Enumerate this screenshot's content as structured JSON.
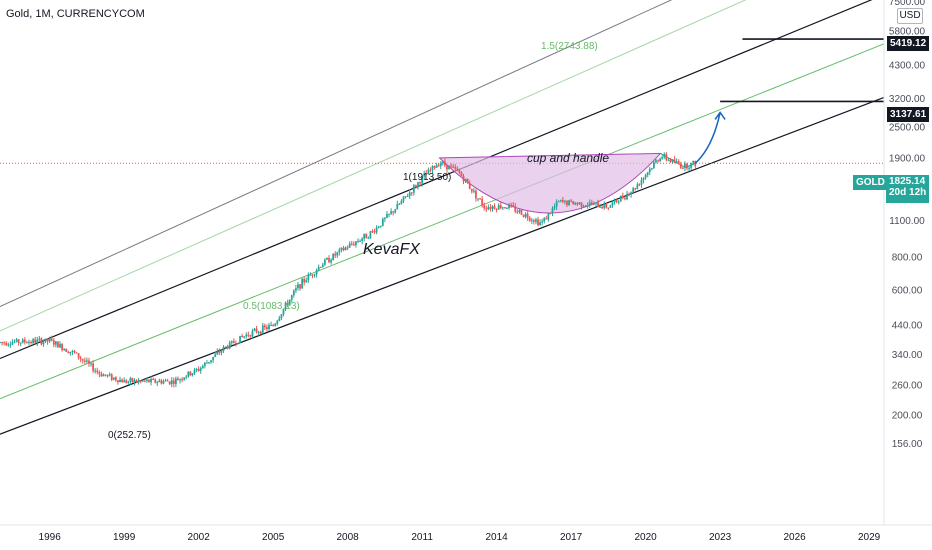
{
  "header": {
    "title": "Gold, 1M, CURRENCYCOM"
  },
  "currency": "USD",
  "price_tags": {
    "symbol": "GOLD",
    "price": "1825.14",
    "countdown": "20d 12h",
    "target_upper": "5419.12",
    "target_lower": "3137.61"
  },
  "annotations": {
    "pattern": "cup and handle",
    "author": "KevaFX",
    "fib_0": "0(252.75)",
    "fib_05": "0.5(1083.13)",
    "fib_1": "1(1913.50)",
    "fib_15": "1.5(2743.88)"
  },
  "colors": {
    "up": "#26a69a",
    "down": "#ef5350",
    "channel": "#131722",
    "fib_green": "#66bb6a",
    "fib_light": "#a5d6a7",
    "cup_fill": "#e1bee7",
    "projection": "#1565c0",
    "price_line": "#ef5350"
  },
  "chart_data": {
    "type": "candlestick",
    "x_axis": {
      "ticks": [
        "1996",
        "1999",
        "2002",
        "2005",
        "2008",
        "2011",
        "2014",
        "2017",
        "2020",
        "2023",
        "2026",
        "2029"
      ]
    },
    "y_axis": {
      "scale": "log",
      "ticks": [
        "7500.00",
        "5800.00",
        "4300.00",
        "3200.00",
        "2500.00",
        "1900.00",
        "1500.00",
        "1100.00",
        "800.00",
        "600.00",
        "440.00",
        "340.00",
        "260.00",
        "200.00",
        "156.00"
      ]
    },
    "price_path": [
      [
        1994.0,
        380
      ],
      [
        1996.0,
        385
      ],
      [
        1997.0,
        345
      ],
      [
        1998.0,
        290
      ],
      [
        1999.0,
        270
      ],
      [
        2000.0,
        270
      ],
      [
        2001.0,
        270
      ],
      [
        2002.0,
        300
      ],
      [
        2003.0,
        360
      ],
      [
        2004.0,
        410
      ],
      [
        2005.0,
        440
      ],
      [
        2006.0,
        620
      ],
      [
        2007.0,
        760
      ],
      [
        2008.0,
        880
      ],
      [
        2009.0,
        1000
      ],
      [
        2010.0,
        1250
      ],
      [
        2011.0,
        1600
      ],
      [
        2011.7,
        1850
      ],
      [
        2012.5,
        1680
      ],
      [
        2013.5,
        1250
      ],
      [
        2014.5,
        1250
      ],
      [
        2015.8,
        1080
      ],
      [
        2016.5,
        1300
      ],
      [
        2017.5,
        1280
      ],
      [
        2018.5,
        1250
      ],
      [
        2019.5,
        1450
      ],
      [
        2020.6,
        1950
      ],
      [
        2021.5,
        1780
      ],
      [
        2022.0,
        1825
      ]
    ],
    "projection": [
      [
        2022.0,
        1825
      ],
      [
        2022.7,
        2100
      ],
      [
        2023.0,
        2850
      ]
    ],
    "last_price": 1825.14,
    "targets": [
      5419.12,
      3137.61
    ],
    "fib_levels": [
      {
        "label": "0(252.75)",
        "value": 252.75
      },
      {
        "label": "0.5(1083.13)",
        "value": 1083.13
      },
      {
        "label": "1(1913.50)",
        "value": 1913.5
      },
      {
        "label": "1.5(2743.88)",
        "value": 2743.88
      }
    ],
    "channel": {
      "lower": [
        [
          1994.0,
          170
        ],
        [
          2029.6,
          3250
        ]
      ],
      "middle": [
        [
          1994.0,
          232
        ],
        [
          2029.6,
          5200
        ]
      ],
      "upper": [
        [
          1994.0,
          330
        ],
        [
          2029.6,
          8000
        ]
      ],
      "upper_far": [
        [
          1994.0,
          520
        ],
        [
          2021.5,
          8000
        ]
      ]
    },
    "cup": {
      "start": [
        2011.7,
        1913.5
      ],
      "bottom": [
        2015.8,
        1060
      ],
      "end": [
        2020.6,
        1990
      ]
    }
  }
}
